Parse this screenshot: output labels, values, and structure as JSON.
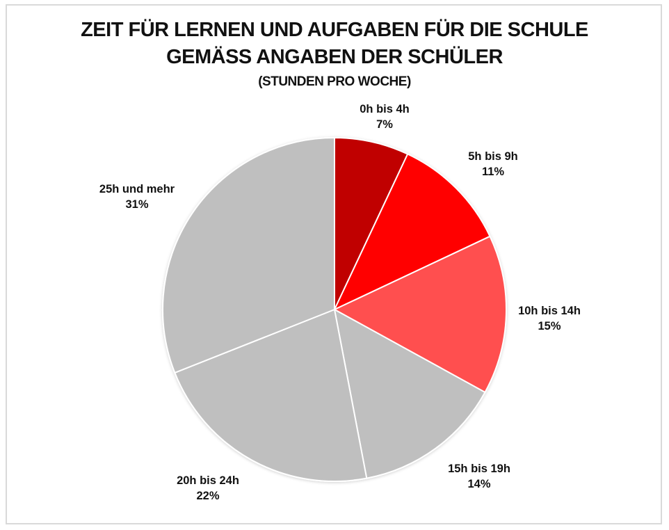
{
  "title": {
    "line1": "ZEIT FÜR LERNEN UND AUFGABEN FÜR DIE SCHULE",
    "line2": "GEMÄSS ANGABEN DER SCHÜLER",
    "line3": "(STUNDEN PRO WOCHE)"
  },
  "labels": [
    {
      "name": "0h bis 4h",
      "pct": "7%"
    },
    {
      "name": "5h bis 9h",
      "pct": "11%"
    },
    {
      "name": "10h bis 14h",
      "pct": "15%"
    },
    {
      "name": "15h bis 19h",
      "pct": "14%"
    },
    {
      "name": "20h bis 24h",
      "pct": "22%"
    },
    {
      "name": "25h und mehr",
      "pct": "31%"
    }
  ],
  "chart_data": {
    "type": "pie",
    "title": "ZEIT FÜR LERNEN UND AUFGABEN FÜR DIE SCHULE GEMÄSS ANGABEN DER SCHÜLER (STUNDEN PRO WOCHE)",
    "categories": [
      "0h bis 4h",
      "5h bis 9h",
      "10h bis 14h",
      "15h bis 19h",
      "20h bis 24h",
      "25h und mehr"
    ],
    "values": [
      7,
      11,
      15,
      14,
      22,
      31
    ],
    "unit": "%",
    "colors": [
      "#c00000",
      "#ff0000",
      "#ff5050",
      "#bfbfbf",
      "#bfbfbf",
      "#bfbfbf"
    ],
    "start_angle": "12 o'clock",
    "direction": "clockwise",
    "data_labels": "category name and percentage, outside end",
    "legend": "none"
  }
}
